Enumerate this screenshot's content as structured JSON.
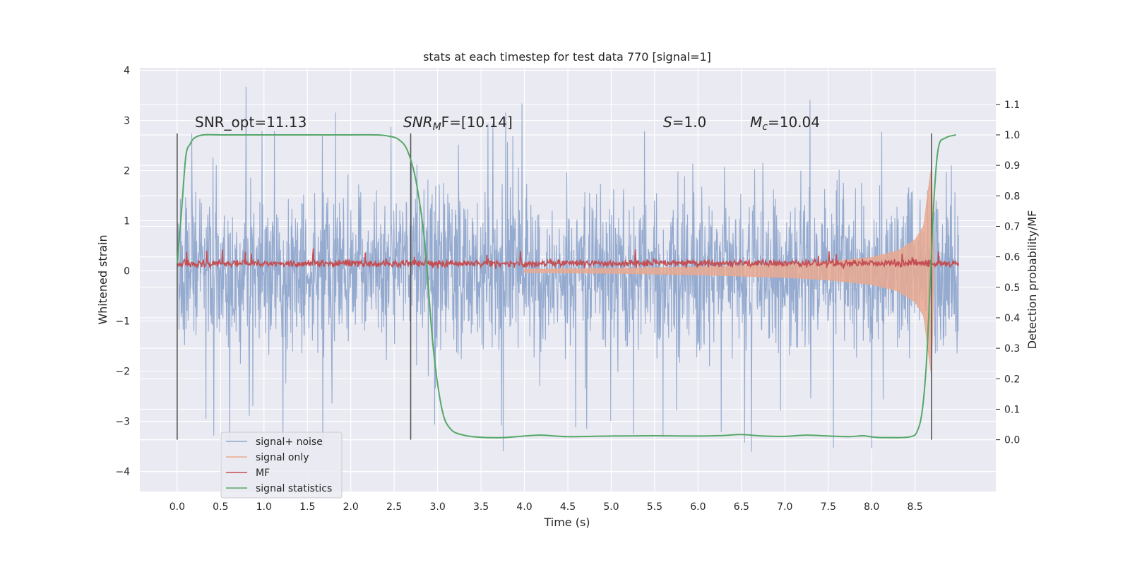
{
  "chart_data": {
    "type": "line",
    "title": "stats at each timestep for test data 770 [signal=1]",
    "xlabel": "Time (s)",
    "ylabel_left": "Whitened strain",
    "ylabel_right": "Detection probability/MF",
    "xlim": [
      -0.43,
      9.43
    ],
    "ylim_left": [
      -4.4,
      4.05
    ],
    "ylim_right": [
      -0.17,
      1.22
    ],
    "x_ticks": [
      "0.0",
      "0.5",
      "1.0",
      "1.5",
      "2.0",
      "2.5",
      "3.0",
      "3.5",
      "4.0",
      "4.5",
      "5.0",
      "5.5",
      "6.0",
      "6.5",
      "7.0",
      "7.5",
      "8.0",
      "8.5"
    ],
    "y_left_ticks": [
      "4",
      "3",
      "2",
      "1",
      "0",
      "−1",
      "−2",
      "−3",
      "−4"
    ],
    "y_right_ticks": [
      "1.1",
      "1.0",
      "0.9",
      "0.8",
      "0.7",
      "0.6",
      "0.5",
      "0.4",
      "0.3",
      "0.2",
      "0.1",
      "0.0"
    ],
    "grid": true,
    "legend_position": "lower-left",
    "annotations": {
      "snr_opt": "SNR_opt=11.13",
      "snr_mf_sym": "SNR",
      "snr_mf_sub": "M",
      "snr_mf_rest": "F=[10.14]",
      "s_sym": "S",
      "s_rest": "=1.0",
      "mc_sym": "M",
      "mc_sub": "c",
      "mc_rest": "=10.04"
    },
    "vertical_lines_s": [
      0.0,
      2.69,
      8.69
    ],
    "series": [
      {
        "name": "signal+ noise",
        "color": "#8fa6cc",
        "axis": "left",
        "description": "whitened noisy strain sampled 0.0–9.0 s, amplitude mostly within ±2.5 with spikes to about ±3.7",
        "t_start": 0.0,
        "t_end": 9.0,
        "spread": 1.1,
        "spike_max": 3.7
      },
      {
        "name": "signal only",
        "color": "#e9a990",
        "axis": "left",
        "description": "chirp envelope growing toward merger near 8.65 s",
        "envelope_t": [
          4.0,
          5.0,
          6.0,
          7.0,
          7.5,
          8.0,
          8.3,
          8.5,
          8.6,
          8.65,
          8.69,
          8.72
        ],
        "envelope_amp": [
          0.03,
          0.05,
          0.08,
          0.13,
          0.18,
          0.27,
          0.4,
          0.62,
          0.9,
          1.6,
          2.1,
          0.0
        ]
      },
      {
        "name": "MF",
        "color": "#c44e52",
        "axis": "left",
        "description": "matched filter output around 0.15 with small fluctuations",
        "t_start": 0.0,
        "t_end": 9.0,
        "level": 0.15,
        "max": 0.45
      },
      {
        "name": "signal statistics",
        "color": "#55a868",
        "axis": "right",
        "x": [
          0.0,
          0.05,
          0.1,
          0.15,
          0.2,
          0.3,
          0.5,
          1.0,
          1.5,
          2.0,
          2.3,
          2.45,
          2.55,
          2.65,
          2.75,
          2.85,
          2.95,
          3.05,
          3.15,
          3.3,
          3.5,
          3.75,
          4.0,
          4.2,
          4.5,
          5.0,
          5.5,
          6.0,
          6.3,
          6.5,
          6.75,
          7.0,
          7.25,
          7.5,
          7.75,
          7.9,
          8.05,
          8.3,
          8.45,
          8.52,
          8.58,
          8.63,
          8.68,
          8.72,
          8.77,
          8.85,
          8.97
        ],
        "y": [
          0.58,
          0.75,
          0.93,
          0.97,
          0.99,
          1.0,
          1.0,
          1.0,
          1.0,
          1.0,
          1.0,
          0.995,
          0.985,
          0.95,
          0.85,
          0.65,
          0.3,
          0.1,
          0.035,
          0.015,
          0.008,
          0.007,
          0.012,
          0.015,
          0.01,
          0.012,
          0.013,
          0.012,
          0.014,
          0.017,
          0.012,
          0.011,
          0.015,
          0.012,
          0.01,
          0.013,
          0.008,
          0.007,
          0.01,
          0.025,
          0.09,
          0.25,
          0.55,
          0.8,
          0.96,
          0.99,
          1.0
        ]
      }
    ]
  }
}
